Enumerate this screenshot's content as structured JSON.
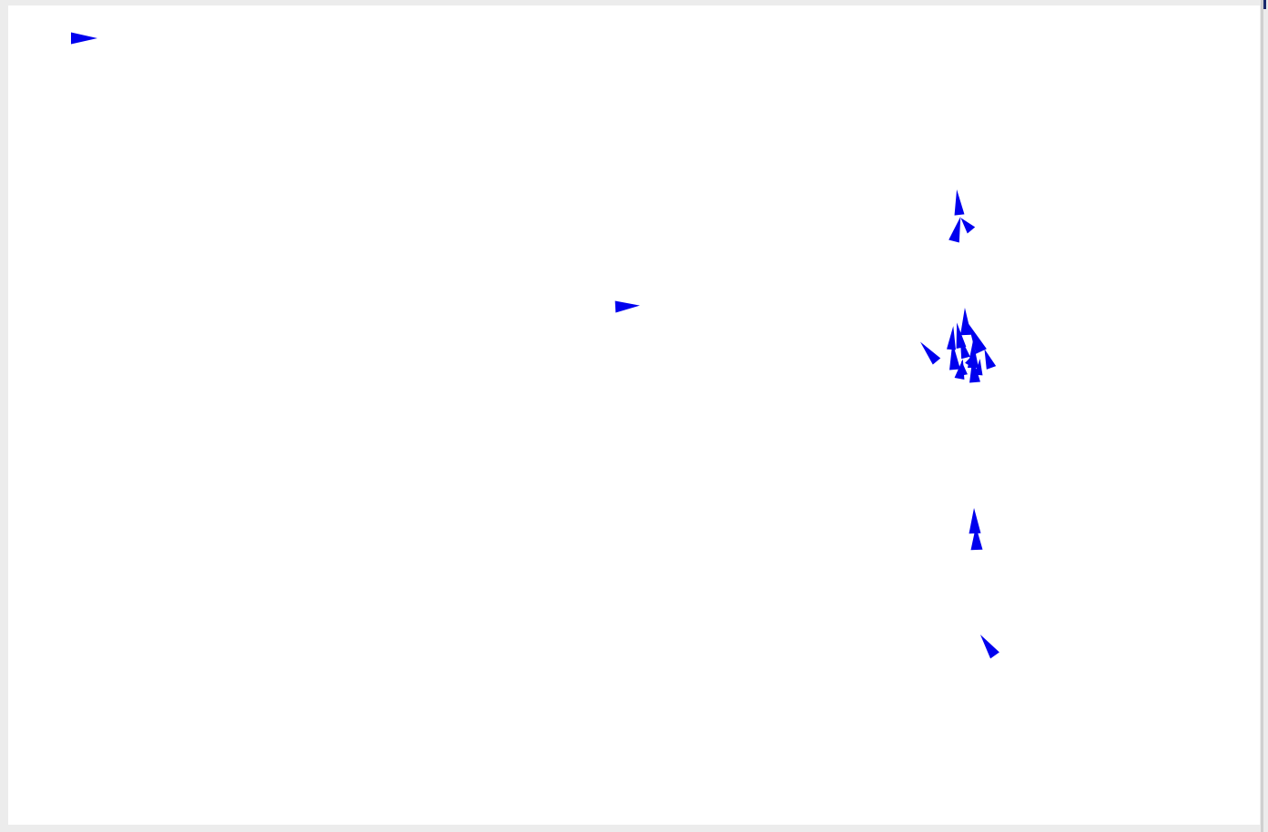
{
  "scene": {
    "background_color": "#ffffff",
    "frame_color": "#ececec",
    "agent_color": "#0000ee",
    "agent_icon": "triangle-arrow-icon",
    "agent_count": 22
  }
}
